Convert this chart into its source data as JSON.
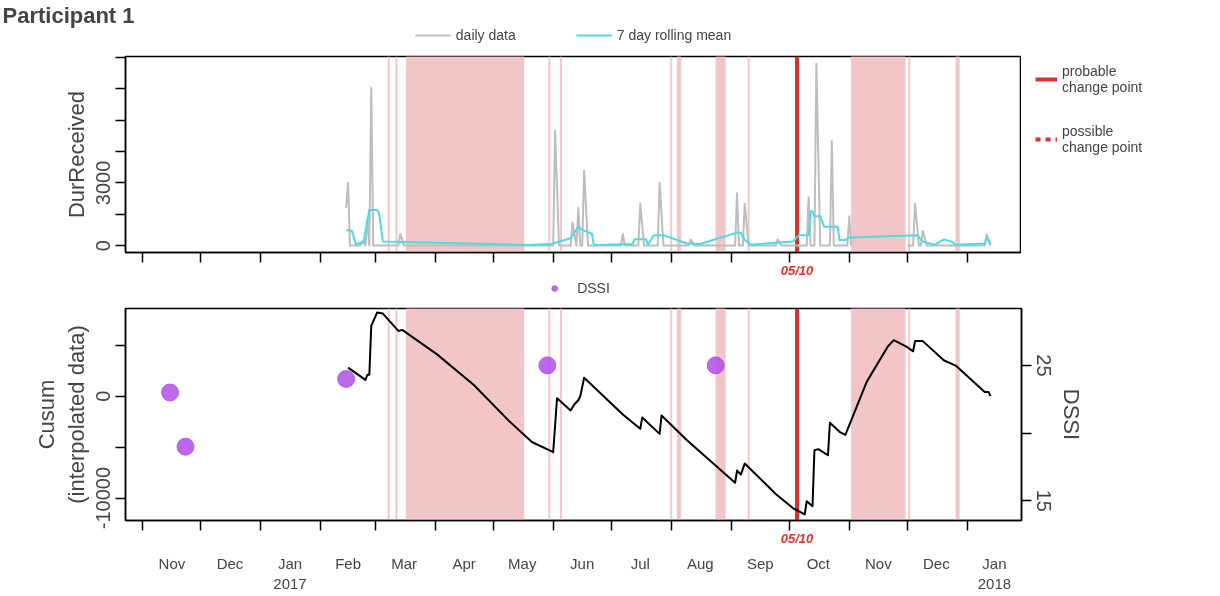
{
  "chart_data": [
    {
      "type": "line",
      "title": "Participant 1",
      "ylabel": "DurReceived",
      "legend": "top",
      "grid": false,
      "tick_labels": "y",
      "xlim": [
        "2016-10-23",
        "2018-01-29"
      ],
      "ylim": [
        -330,
        9050
      ],
      "yticks": [
        0,
        {
          "value": 1500,
          "label": null
        },
        3000,
        {
          "value": 4500,
          "label": null
        },
        {
          "value": 6000,
          "label": null
        },
        {
          "value": 7500,
          "label": null
        },
        {
          "value": 9000,
          "label": null
        }
      ],
      "xticks": [
        {
          "value": "2016-11-01",
          "label": null
        },
        {
          "value": "2016-12-01",
          "label": null
        },
        {
          "value": "2017-01-01",
          "label": null
        },
        {
          "value": "2017-02-01",
          "label": null
        },
        {
          "value": "2017-03-01",
          "label": null
        },
        {
          "value": "2017-04-01",
          "label": null
        },
        {
          "value": "2017-05-01",
          "label": null
        },
        {
          "value": "2017-06-01",
          "label": null
        },
        {
          "value": "2017-07-01",
          "label": null
        },
        {
          "value": "2017-08-01",
          "label": null
        },
        {
          "value": "2017-09-01",
          "label": null
        },
        {
          "value": "2017-10-01",
          "label": null
        },
        {
          "value": "2017-11-01",
          "label": null
        },
        {
          "value": "2017-12-01",
          "label": null
        },
        {
          "value": "2018-01-01",
          "label": null
        }
      ],
      "series": [
        {
          "name": "daily data",
          "color": "#bdbdbd",
          "x": [
            "2017-02-14",
            "2017-02-15",
            "2017-02-16",
            "2017-02-21",
            "2017-02-23",
            "2017-02-24",
            "2017-02-25",
            "2017-02-26",
            "2017-02-27",
            "2017-02-28",
            "2017-03-03",
            "2017-03-13",
            "2017-03-14",
            "2017-03-16",
            "2017-06-01",
            "2017-06-02",
            "2017-06-04",
            "2017-06-10",
            "2017-06-11",
            "2017-06-13",
            "2017-06-14",
            "2017-06-15",
            "2017-06-16",
            "2017-06-17",
            "2017-06-19",
            "2017-07-06",
            "2017-07-07",
            "2017-07-08",
            "2017-07-15",
            "2017-07-16",
            "2017-07-18",
            "2017-07-25",
            "2017-07-26",
            "2017-07-28",
            "2017-08-10",
            "2017-08-11",
            "2017-08-13",
            "2017-09-03",
            "2017-09-04",
            "2017-09-05",
            "2017-09-07",
            "2017-09-08",
            "2017-09-10",
            "2017-09-24",
            "2017-09-25",
            "2017-09-27",
            "2017-10-10",
            "2017-10-11",
            "2017-10-12",
            "2017-10-14",
            "2017-10-15",
            "2017-10-17",
            "2017-10-22",
            "2017-10-23",
            "2017-10-24",
            "2017-10-31",
            "2017-11-01",
            "2017-11-02",
            "2017-11-15",
            "2017-12-01",
            "2017-12-04",
            "2017-12-05",
            "2017-12-07",
            "2017-12-08",
            "2017-12-09",
            "2017-12-11",
            "2018-01-10",
            "2018-01-11",
            "2018-01-13"
          ],
          "values": [
            1800,
            3000,
            0,
            0,
            250,
            0,
            1300,
            0,
            7550,
            0,
            0,
            0,
            550,
            0,
            0,
            5500,
            0,
            0,
            1100,
            0,
            1800,
            0,
            0,
            3600,
            0,
            0,
            550,
            0,
            0,
            2000,
            0,
            0,
            3000,
            0,
            0,
            300,
            0,
            0,
            2500,
            0,
            0,
            2000,
            0,
            0,
            300,
            0,
            0,
            2300,
            0,
            0,
            8700,
            0,
            0,
            5000,
            0,
            0,
            1400,
            0,
            null,
            0,
            0,
            2000,
            0,
            0,
            700,
            0,
            0,
            550,
            0
          ]
        },
        {
          "name": "7 day rolling mean",
          "color": "#4dd9e6",
          "x": [
            "2017-02-14",
            "2017-02-17",
            "2017-02-19",
            "2017-02-23",
            "2017-02-25",
            "2017-02-26",
            "2017-03-02",
            "2017-03-03",
            "2017-03-05",
            "2017-05-18",
            "2017-05-31",
            "2017-06-10",
            "2017-06-14",
            "2017-06-16",
            "2017-06-21",
            "2017-06-22",
            "2017-07-12",
            "2017-07-13",
            "2017-07-19",
            "2017-07-20",
            "2017-07-23",
            "2017-07-28",
            "2017-08-09",
            "2017-08-16",
            "2017-08-25",
            "2017-09-04",
            "2017-09-06",
            "2017-09-08",
            "2017-09-11",
            "2017-10-03",
            "2017-10-06",
            "2017-10-11",
            "2017-10-12",
            "2017-10-13",
            "2017-10-14",
            "2017-10-17",
            "2017-10-19",
            "2017-10-26",
            "2017-10-27",
            "2017-10-30",
            "2017-11-01",
            "2017-12-06",
            "2017-12-09",
            "2017-12-15",
            "2017-12-20",
            "2017-12-24",
            "2017-12-26",
            "2018-01-10",
            "2018-01-11",
            "2018-01-13"
          ],
          "values": [
            750,
            700,
            80,
            150,
            1200,
            1700,
            1700,
            1550,
            200,
            30,
            80,
            350,
            900,
            750,
            570,
            30,
            80,
            300,
            300,
            40,
            500,
            500,
            100,
            80,
            340,
            620,
            620,
            270,
            40,
            200,
            500,
            500,
            1640,
            1640,
            1400,
            1400,
            900,
            900,
            270,
            270,
            390,
            500,
            190,
            40,
            300,
            190,
            40,
            100,
            390,
            80
          ]
        }
      ],
      "bands": [
        {
          "axis": "x",
          "from": "2017-03-17",
          "to": "2017-05-17",
          "color": "#f2c6c6"
        },
        {
          "axis": "x",
          "from": "2017-08-04",
          "to": "2017-08-06",
          "color": "#f2c6c6"
        },
        {
          "axis": "x",
          "from": "2017-08-24",
          "to": "2017-08-29",
          "color": "#f2c6c6"
        },
        {
          "axis": "x",
          "from": "2017-11-02",
          "to": "2017-11-30",
          "color": "#f2c6c6"
        },
        {
          "axis": "x",
          "from": "2017-12-26",
          "to": "2017-12-28",
          "color": "#f2c6c6"
        }
      ],
      "ref_lines": [
        {
          "axis": "x",
          "value": "2017-03-08",
          "color": "#f4c6c6"
        },
        {
          "axis": "x",
          "value": "2017-03-12",
          "color": "#f4c6c6"
        },
        {
          "axis": "x",
          "value": "2017-05-30",
          "color": "#f4c6c6"
        },
        {
          "axis": "x",
          "value": "2017-06-05",
          "color": "#f4c6c6"
        },
        {
          "axis": "x",
          "value": "2017-08-01",
          "color": "#f4c6c6"
        },
        {
          "axis": "x",
          "value": "2017-09-10",
          "color": "#f4c6c6"
        },
        {
          "axis": "x",
          "value": "2017-12-02",
          "color": "#f4c6c6"
        },
        {
          "axis": "x",
          "value": "2017-10-05",
          "label": "05/10",
          "color": "#e0302a"
        }
      ],
      "annotations": [
        "probable change point",
        "possible change point"
      ]
    },
    {
      "type": "line",
      "ylabel": "Cusum\n(interpolated data)",
      "y2label": "DSSI",
      "legend": "top",
      "grid": false,
      "xlim": [
        "2016-10-23",
        "2018-01-29"
      ],
      "ylim": [
        -12200,
        8600
      ],
      "y2lim": [
        13.55,
        29.2
      ],
      "yticks": [
        {
          "value": 5000,
          "label": null
        },
        0,
        {
          "value": -5000,
          "label": null
        },
        -10000
      ],
      "y2ticks": [
        15,
        {
          "value": 20,
          "label": null
        },
        25
      ],
      "xticks": [
        {
          "value": "2016-11-01",
          "label": null
        },
        {
          "value": "2016-12-01",
          "label": null
        },
        {
          "value": "2017-01-01",
          "label": null
        },
        {
          "value": "2017-02-01",
          "label": null
        },
        {
          "value": "2017-03-01",
          "label": null
        },
        {
          "value": "2017-04-01",
          "label": null
        },
        {
          "value": "2017-05-01",
          "label": null
        },
        {
          "value": "2017-06-01",
          "label": null
        },
        {
          "value": "2017-07-01",
          "label": null
        },
        {
          "value": "2017-08-01",
          "label": null
        },
        {
          "value": "2017-09-01",
          "label": null
        },
        {
          "value": "2017-10-01",
          "label": null
        },
        {
          "value": "2017-11-01",
          "label": null
        },
        {
          "value": "2017-12-01",
          "label": null
        },
        {
          "value": "2018-01-01",
          "label": null
        },
        {
          "value": "2016-11-16",
          "label": "Nov"
        },
        {
          "value": "2016-12-16",
          "label": "Dec"
        },
        {
          "value": "2017-01-16",
          "label": "Jan\n2017"
        },
        {
          "value": "2017-02-15",
          "label": "Feb"
        },
        {
          "value": "2017-03-16",
          "label": "Mar"
        },
        {
          "value": "2017-04-16",
          "label": "Apr"
        },
        {
          "value": "2017-05-16",
          "label": "May"
        },
        {
          "value": "2017-06-16",
          "label": "Jun"
        },
        {
          "value": "2017-07-16",
          "label": "Jul"
        },
        {
          "value": "2017-08-16",
          "label": "Aug"
        },
        {
          "value": "2017-09-16",
          "label": "Sep"
        },
        {
          "value": "2017-10-16",
          "label": "Oct"
        },
        {
          "value": "2017-11-16",
          "label": "Nov"
        },
        {
          "value": "2017-12-16",
          "label": "Dec"
        },
        {
          "value": "2018-01-15",
          "label": "Jan\n2018"
        }
      ],
      "series": [
        {
          "color": "#000000",
          "x": [
            "2017-02-15",
            "2017-02-24",
            "2017-02-25",
            "2017-02-26",
            "2017-02-27",
            "2017-03-02",
            "2017-03-05",
            "2017-03-13",
            "2017-03-15",
            "2017-04-02",
            "2017-04-21",
            "2017-05-09",
            "2017-05-21",
            "2017-06-01",
            "2017-06-03",
            "2017-06-10",
            "2017-06-12",
            "2017-06-14",
            "2017-06-15",
            "2017-06-17",
            "2017-07-07",
            "2017-07-16",
            "2017-07-17",
            "2017-07-26",
            "2017-07-27",
            "2017-08-09",
            "2017-09-03",
            "2017-09-04",
            "2017-09-06",
            "2017-09-08",
            "2017-09-24",
            "2017-10-03",
            "2017-10-09",
            "2017-10-10",
            "2017-10-13",
            "2017-10-14",
            "2017-10-16",
            "2017-10-21",
            "2017-10-22",
            "2017-10-27",
            "2017-10-30",
            "2017-11-10",
            "2017-11-21",
            "2017-11-24",
            "2017-12-01",
            "2017-12-04",
            "2017-12-05",
            "2017-12-09",
            "2017-12-20",
            "2017-12-26",
            "2018-01-10",
            "2018-01-12",
            "2018-01-13"
          ],
          "values": [
            2800,
            1600,
            2100,
            2100,
            6900,
            8200,
            8100,
            6400,
            6500,
            4100,
            1100,
            -2400,
            -4500,
            -5500,
            -200,
            -1400,
            -800,
            -400,
            0,
            1800,
            -1800,
            -3200,
            -2100,
            -3700,
            -1900,
            -4300,
            -8500,
            -7300,
            -7700,
            -6600,
            -9600,
            -11000,
            -11600,
            -10300,
            -10800,
            -5300,
            -5200,
            -5800,
            -2600,
            -3500,
            -3800,
            1400,
            4900,
            5500,
            4800,
            4400,
            5400,
            5400,
            3500,
            3000,
            400,
            400,
            0
          ]
        },
        {
          "name": "DSSI",
          "type": "scatter",
          "marker": "circle",
          "axis": "y2",
          "color": "#b04ee8",
          "x": [
            "2016-11-15",
            "2016-11-23",
            "2017-02-14",
            "2017-05-29",
            "2017-08-24"
          ],
          "values": [
            23,
            19,
            24,
            25,
            25
          ]
        }
      ],
      "bands": [
        {
          "axis": "x",
          "from": "2017-03-17",
          "to": "2017-05-17",
          "color": "#f2c6c6"
        },
        {
          "axis": "x",
          "from": "2017-08-04",
          "to": "2017-08-06",
          "color": "#f2c6c6"
        },
        {
          "axis": "x",
          "from": "2017-08-24",
          "to": "2017-08-29",
          "color": "#f2c6c6"
        },
        {
          "axis": "x",
          "from": "2017-11-02",
          "to": "2017-11-30",
          "color": "#f2c6c6"
        },
        {
          "axis": "x",
          "from": "2017-12-26",
          "to": "2017-12-28",
          "color": "#f2c6c6"
        }
      ],
      "ref_lines": [
        {
          "axis": "x",
          "value": "2017-03-08",
          "color": "#f4c6c6"
        },
        {
          "axis": "x",
          "value": "2017-03-12",
          "color": "#f4c6c6"
        },
        {
          "axis": "x",
          "value": "2017-05-30",
          "color": "#f4c6c6"
        },
        {
          "axis": "x",
          "value": "2017-06-05",
          "color": "#f4c6c6"
        },
        {
          "axis": "x",
          "value": "2017-08-01",
          "color": "#f4c6c6"
        },
        {
          "axis": "x",
          "value": "2017-09-10",
          "color": "#f4c6c6"
        },
        {
          "axis": "x",
          "value": "2017-12-02",
          "color": "#f4c6c6"
        },
        {
          "axis": "x",
          "value": "2017-10-05",
          "label": "05/10",
          "color": "#e0302a"
        }
      ]
    }
  ]
}
